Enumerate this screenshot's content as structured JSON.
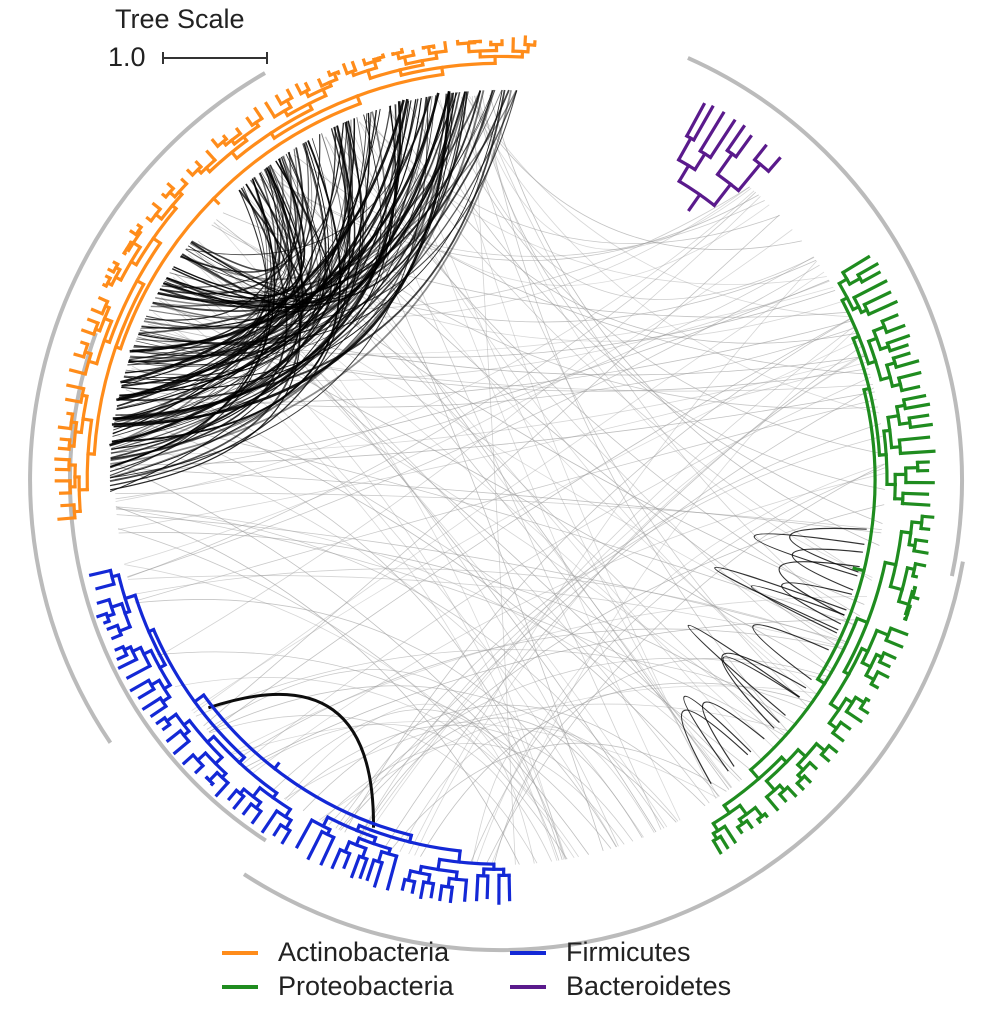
{
  "scale": {
    "title": "Tree Scale",
    "value": "1.0"
  },
  "legend": {
    "items": [
      {
        "label": "Actinobacteria",
        "color": "#ff8c1a"
      },
      {
        "label": "Firmicutes",
        "color": "#1328d6"
      },
      {
        "label": "Proteobacteria",
        "color": "#1f8c1f"
      },
      {
        "label": "Bacteroidetes",
        "color": "#5a1a8c"
      }
    ]
  },
  "colors": {
    "outer_ring": "#bbbbbb",
    "links_strong": "#000000",
    "links_faint": "#999999"
  }
}
